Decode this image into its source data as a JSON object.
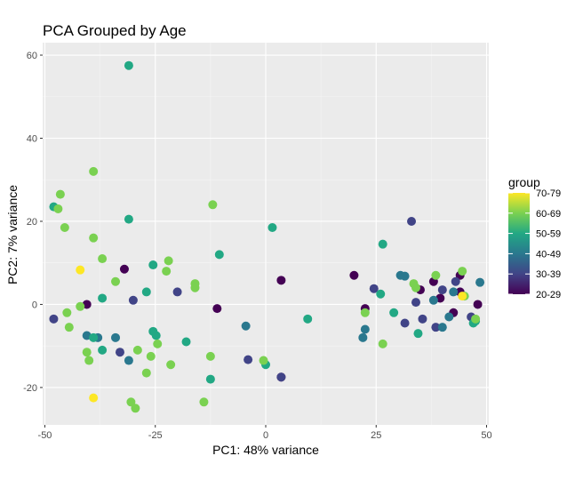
{
  "chart_data": {
    "type": "scatter",
    "title": "PCA Grouped by Age",
    "xlabel": "PC1: 48% variance",
    "ylabel": "PC2: 7% variance",
    "xlim": [
      -50.5,
      50.5
    ],
    "ylim": [
      -29,
      63
    ],
    "xticks": [
      -50,
      -25,
      0,
      25,
      50
    ],
    "yticks": [
      -20,
      0,
      20,
      40,
      60
    ],
    "grid": true,
    "legend": {
      "title": "group",
      "position": "right",
      "labels": [
        "70-79",
        "60-69",
        "50-59",
        "40-49",
        "30-39",
        "20-29"
      ]
    },
    "colors": {
      "20-29": "#440154",
      "30-39": "#414487",
      "40-49": "#2a788e",
      "50-59": "#22a884",
      "60-69": "#7ad151",
      "70-79": "#fde725"
    },
    "series": [
      {
        "name": "20-29",
        "points": [
          [
            -32,
            8.5
          ],
          [
            -40.5,
            0
          ],
          [
            -11,
            -1
          ],
          [
            3.5,
            5.8
          ],
          [
            20,
            7
          ],
          [
            22.5,
            -1
          ],
          [
            35,
            3.5
          ],
          [
            38,
            5.5
          ],
          [
            39.5,
            1.5
          ],
          [
            42.5,
            -2
          ],
          [
            44,
            7
          ],
          [
            44,
            3
          ],
          [
            48,
            0
          ],
          [
            3.5,
            -17.5
          ]
        ]
      },
      {
        "name": "30-39",
        "points": [
          [
            -48,
            -3.5
          ],
          [
            -33,
            -11.5
          ],
          [
            -30,
            1
          ],
          [
            -20,
            3
          ],
          [
            -4,
            -13.3
          ],
          [
            3.5,
            -17.5
          ],
          [
            24.5,
            3.8
          ],
          [
            31.5,
            -4.5
          ],
          [
            33,
            20
          ],
          [
            34,
            0.5
          ],
          [
            35.5,
            -3.5
          ],
          [
            38.5,
            -5.5
          ],
          [
            40,
            3.5
          ],
          [
            43,
            5.5
          ],
          [
            46.5,
            -3
          ]
        ]
      },
      {
        "name": "40-49",
        "points": [
          [
            -40.5,
            -7.5
          ],
          [
            -38,
            -8
          ],
          [
            -34,
            -8
          ],
          [
            -31,
            -13.5
          ],
          [
            -4.5,
            -5.2
          ],
          [
            22,
            -8
          ],
          [
            22.5,
            -6
          ],
          [
            30.5,
            7
          ],
          [
            31.5,
            6.8
          ],
          [
            38,
            1
          ],
          [
            40,
            -5.5
          ],
          [
            41.5,
            -3
          ],
          [
            42.5,
            3
          ],
          [
            48.5,
            5.3
          ]
        ]
      },
      {
        "name": "50-59",
        "points": [
          [
            -48,
            23.5
          ],
          [
            -31,
            57.5
          ],
          [
            -31,
            20.5
          ],
          [
            -39,
            -8
          ],
          [
            -37,
            -11
          ],
          [
            -37,
            1.5
          ],
          [
            -27,
            3
          ],
          [
            -25.5,
            9.5
          ],
          [
            -25.5,
            -6.5
          ],
          [
            -24.8,
            -7.5
          ],
          [
            -18,
            -9
          ],
          [
            -12.5,
            -18
          ],
          [
            -10.5,
            12
          ],
          [
            0,
            -14.5
          ],
          [
            1.5,
            18.5
          ],
          [
            9.5,
            -3.5
          ],
          [
            26.5,
            14.5
          ],
          [
            26,
            2.5
          ],
          [
            29,
            -2
          ],
          [
            34.5,
            -7
          ],
          [
            47,
            -4.5
          ],
          [
            47.5,
            -4
          ]
        ]
      },
      {
        "name": "60-69",
        "points": [
          [
            -39,
            32
          ],
          [
            -46.5,
            26.5
          ],
          [
            -47,
            23
          ],
          [
            -45.5,
            18.5
          ],
          [
            -39,
            16
          ],
          [
            -37,
            11
          ],
          [
            -45,
            -2
          ],
          [
            -44.5,
            -5.5
          ],
          [
            -42,
            -0.5
          ],
          [
            -40.5,
            -11.5
          ],
          [
            -40,
            -13.5
          ],
          [
            -34,
            5.5
          ],
          [
            -30.5,
            -23.5
          ],
          [
            -29.5,
            -25
          ],
          [
            -29,
            -11
          ],
          [
            -27,
            -16.5
          ],
          [
            -26,
            -12.5
          ],
          [
            -24.5,
            -9.5
          ],
          [
            -22,
            10.5
          ],
          [
            -22.5,
            8
          ],
          [
            -21.5,
            -14.5
          ],
          [
            -16,
            5
          ],
          [
            -16,
            4
          ],
          [
            -14,
            -23.5
          ],
          [
            -12,
            24
          ],
          [
            -12.5,
            -12.5
          ],
          [
            -0.5,
            -13.5
          ],
          [
            22.5,
            -2
          ],
          [
            26.5,
            -9.5
          ],
          [
            33.5,
            5
          ],
          [
            34,
            4
          ],
          [
            38.5,
            7
          ],
          [
            44.5,
            8
          ],
          [
            45,
            2
          ],
          [
            47.5,
            -3.5
          ]
        ]
      },
      {
        "name": "70-79",
        "points": [
          [
            -42,
            8.3
          ],
          [
            -39,
            -22.5
          ],
          [
            44.5,
            2
          ]
        ]
      }
    ]
  }
}
